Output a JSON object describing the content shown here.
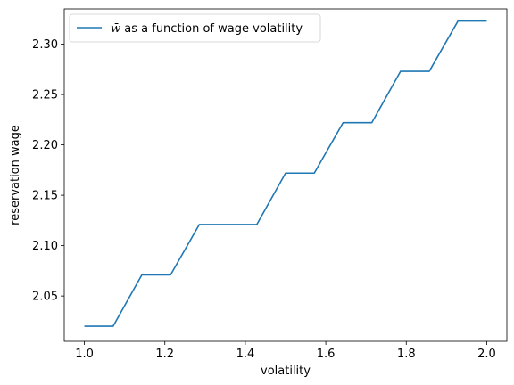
{
  "chart_data": {
    "type": "line",
    "xlabel": "volatility",
    "ylabel": "reservation wage",
    "xlim": [
      0.95,
      2.05
    ],
    "ylim": [
      2.005,
      2.335
    ],
    "xticks": [
      1.0,
      1.2,
      1.4,
      1.6,
      1.8,
      2.0
    ],
    "xtick_labels": [
      "1.0",
      "1.2",
      "1.4",
      "1.6",
      "1.8",
      "2.0"
    ],
    "yticks": [
      2.05,
      2.1,
      2.15,
      2.2,
      2.25,
      2.3
    ],
    "ytick_labels": [
      "2.05",
      "2.10",
      "2.15",
      "2.20",
      "2.25",
      "2.30"
    ],
    "grid": false,
    "legend_position": "top-left",
    "series": [
      {
        "name_symbol": "w̄",
        "name_rest": " as a function of wage volatility",
        "color": "#1f77b4",
        "x": [
          1.0,
          1.0714,
          1.1429,
          1.2143,
          1.2857,
          1.3571,
          1.4286,
          1.5,
          1.5714,
          1.6429,
          1.7143,
          1.7857,
          1.8571,
          1.9286,
          2.0
        ],
        "y": [
          2.02,
          2.02,
          2.071,
          2.071,
          2.121,
          2.121,
          2.121,
          2.172,
          2.172,
          2.222,
          2.222,
          2.273,
          2.273,
          2.323,
          2.323
        ]
      }
    ]
  }
}
